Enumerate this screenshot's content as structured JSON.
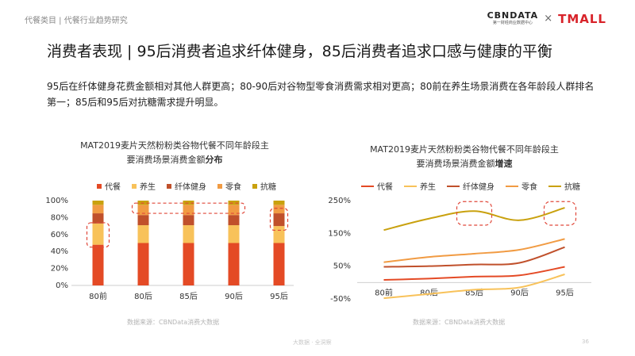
{
  "header": {
    "category": "代餐类目 | 代餐行业趋势研究",
    "logo_cbn": "CBNDATA",
    "logo_cbn_sub": "第一财经商业数据中心",
    "logo_times": "×",
    "logo_tmall": "TMALL"
  },
  "headline": "消费者表现 | 95后消费者追求纤体健身，85后消费者追求口感与健康的平衡",
  "description": "95后在纤体健身花费金额相对其他人群更高；80-90后对谷物型零食消费需求相对更高；80前在养生场景消费在各年龄段人群排名第一；85后和95后对抗糖需求提升明显。",
  "colors": {
    "代餐": "#e44a25",
    "养生": "#f8c25a",
    "纤体健身": "#c0502b",
    "零食": "#f19b43",
    "抗糖": "#c9a10e",
    "highlight": "#e0483a"
  },
  "chart_data": [
    {
      "type": "bar",
      "stacked": true,
      "title_line1": "MAT2019麦片天然粉粉类谷物代餐不同年龄段主",
      "title_line2_prefix": "要消费场景消费金额",
      "title_line2_bold": "分布",
      "categories": [
        "80前",
        "80后",
        "85后",
        "90后",
        "95后"
      ],
      "ylim": [
        0,
        100
      ],
      "yticks": [
        "0%",
        "20%",
        "40%",
        "60%",
        "80%",
        "100%"
      ],
      "series": [
        {
          "name": "代餐",
          "values": [
            48,
            50,
            50,
            50,
            50
          ]
        },
        {
          "name": "养生",
          "values": [
            25,
            21,
            21,
            21,
            20
          ]
        },
        {
          "name": "纤体健身",
          "values": [
            12,
            12,
            12,
            12,
            15
          ]
        },
        {
          "name": "零食",
          "values": [
            10,
            12,
            12,
            12,
            10
          ]
        },
        {
          "name": "抗糖",
          "values": [
            5,
            5,
            5,
            5,
            5
          ]
        }
      ],
      "source": "数据来源：CBNData消费大数据"
    },
    {
      "type": "line",
      "title_line1": "MAT2019麦片天然粉粉类谷物代餐不同年龄段主",
      "title_line2_prefix": "要消费场景消费金额",
      "title_line2_bold": "增速",
      "categories": [
        "80前",
        "80后",
        "85后",
        "90后",
        "95后"
      ],
      "ylim": [
        -50,
        250
      ],
      "yticks": [
        "-50%",
        "50%",
        "150%",
        "250%"
      ],
      "series": [
        {
          "name": "代餐",
          "values": [
            8,
            12,
            18,
            22,
            48
          ]
        },
        {
          "name": "养生",
          "values": [
            -48,
            -35,
            -22,
            -15,
            25
          ]
        },
        {
          "name": "纤体健身",
          "values": [
            48,
            50,
            55,
            60,
            108
          ]
        },
        {
          "name": "零食",
          "values": [
            62,
            78,
            88,
            100,
            133
          ]
        },
        {
          "name": "抗糖",
          "values": [
            160,
            195,
            218,
            190,
            228
          ]
        }
      ],
      "source": "数据来源：CBNData消费大数据"
    }
  ],
  "footer": {
    "text": "大数据 · 全洞察",
    "page": "36"
  }
}
